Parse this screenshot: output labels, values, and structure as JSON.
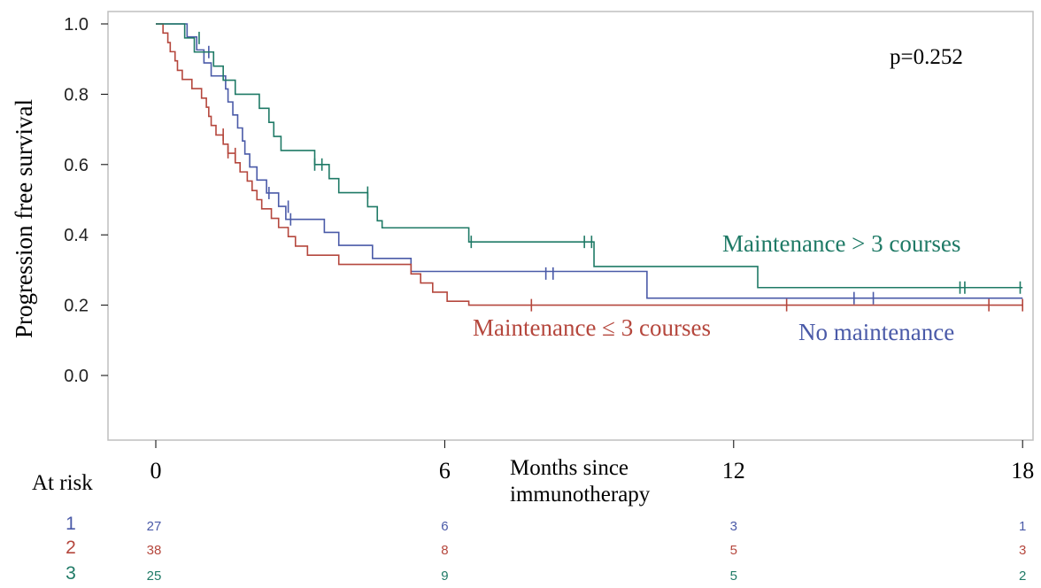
{
  "chart_data": {
    "type": "line",
    "title": "",
    "xlabel": "Months since immunotherapy",
    "xlabel_lines": [
      "Months since",
      "immunotherapy"
    ],
    "ylabel": "Progression free survival",
    "xlim": [
      -1,
      18
    ],
    "ylim": [
      -0.18,
      1.04
    ],
    "x_ticks": [
      0,
      6,
      12,
      18
    ],
    "x_tick_labels": [
      "0",
      "6",
      "12",
      "18"
    ],
    "y_ticks": [
      0.0,
      0.2,
      0.4,
      0.6,
      0.8,
      1.0
    ],
    "y_tick_labels": [
      "0.0",
      "0.2",
      "0.4",
      "0.6",
      "0.8",
      "1.0"
    ],
    "grid": false,
    "annotation": "p=0.252",
    "series": [
      {
        "name": "No maintenance",
        "risk_label": "1",
        "color": "#4a5aa8",
        "steps": [
          [
            0,
            1.0
          ],
          [
            0.65,
            0.963
          ],
          [
            0.85,
            0.926
          ],
          [
            1.0,
            0.889
          ],
          [
            1.15,
            0.852
          ],
          [
            1.45,
            0.815
          ],
          [
            1.5,
            0.778
          ],
          [
            1.6,
            0.741
          ],
          [
            1.7,
            0.704
          ],
          [
            1.8,
            0.667
          ],
          [
            1.85,
            0.63
          ],
          [
            1.95,
            0.593
          ],
          [
            2.1,
            0.556
          ],
          [
            2.3,
            0.519
          ],
          [
            2.55,
            0.481
          ],
          [
            2.7,
            0.444
          ],
          [
            3.5,
            0.407
          ],
          [
            3.8,
            0.37
          ],
          [
            4.5,
            0.333
          ],
          [
            5.3,
            0.296
          ],
          [
            10.2,
            0.22
          ],
          [
            18,
            0.22
          ]
        ],
        "censored": [
          [
            1.1,
            0.92
          ],
          [
            2.35,
            0.519
          ],
          [
            2.75,
            0.48
          ],
          [
            2.8,
            0.444
          ],
          [
            8.1,
            0.29
          ],
          [
            8.25,
            0.29
          ],
          [
            14.5,
            0.22
          ],
          [
            14.9,
            0.22
          ]
        ],
        "at_risk": [
          27,
          6,
          3,
          1
        ]
      },
      {
        "name": "Maintenance ≤ 3 courses",
        "risk_label": "2",
        "color": "#b5473d",
        "steps": [
          [
            0,
            1.0
          ],
          [
            0.15,
            0.974
          ],
          [
            0.25,
            0.947
          ],
          [
            0.3,
            0.921
          ],
          [
            0.4,
            0.895
          ],
          [
            0.45,
            0.868
          ],
          [
            0.55,
            0.842
          ],
          [
            0.75,
            0.816
          ],
          [
            0.95,
            0.789
          ],
          [
            1.05,
            0.763
          ],
          [
            1.1,
            0.737
          ],
          [
            1.15,
            0.711
          ],
          [
            1.25,
            0.684
          ],
          [
            1.4,
            0.658
          ],
          [
            1.5,
            0.632
          ],
          [
            1.65,
            0.605
          ],
          [
            1.75,
            0.579
          ],
          [
            1.9,
            0.553
          ],
          [
            2.0,
            0.526
          ],
          [
            2.1,
            0.5
          ],
          [
            2.2,
            0.474
          ],
          [
            2.4,
            0.447
          ],
          [
            2.55,
            0.421
          ],
          [
            2.75,
            0.395
          ],
          [
            2.9,
            0.368
          ],
          [
            3.15,
            0.342
          ],
          [
            3.8,
            0.316
          ],
          [
            5.3,
            0.289
          ],
          [
            5.5,
            0.263
          ],
          [
            5.75,
            0.237
          ],
          [
            6.05,
            0.211
          ],
          [
            6.5,
            0.2
          ],
          [
            18,
            0.2
          ]
        ],
        "censored": [
          [
            1.4,
            0.685
          ],
          [
            1.5,
            0.635
          ],
          [
            1.65,
            0.63
          ],
          [
            7.8,
            0.2
          ],
          [
            13.1,
            0.2
          ],
          [
            17.3,
            0.2
          ],
          [
            18,
            0.2
          ]
        ],
        "at_risk": [
          38,
          8,
          5,
          3
        ]
      },
      {
        "name": "Maintenance > 3 courses",
        "risk_label": "3",
        "color": "#1f7a66",
        "steps": [
          [
            0,
            1.0
          ],
          [
            0.6,
            1.0
          ],
          [
            0.6,
            0.96
          ],
          [
            0.8,
            0.92
          ],
          [
            1.2,
            0.88
          ],
          [
            1.4,
            0.84
          ],
          [
            1.65,
            0.8
          ],
          [
            2.15,
            0.76
          ],
          [
            2.35,
            0.72
          ],
          [
            2.45,
            0.68
          ],
          [
            2.6,
            0.64
          ],
          [
            3.3,
            0.6
          ],
          [
            3.6,
            0.56
          ],
          [
            3.8,
            0.52
          ],
          [
            4.4,
            0.48
          ],
          [
            4.6,
            0.44
          ],
          [
            4.7,
            0.42
          ],
          [
            6.5,
            0.38
          ],
          [
            9.1,
            0.31
          ],
          [
            12.5,
            0.25
          ],
          [
            18,
            0.25
          ]
        ],
        "censored": [
          [
            0.9,
            0.96
          ],
          [
            3.3,
            0.6
          ],
          [
            3.45,
            0.6
          ],
          [
            4.4,
            0.52
          ],
          [
            6.55,
            0.38
          ],
          [
            8.9,
            0.38
          ],
          [
            9.05,
            0.38
          ],
          [
            16.7,
            0.25
          ],
          [
            16.8,
            0.25
          ],
          [
            17.95,
            0.25
          ]
        ],
        "at_risk": [
          25,
          9,
          5,
          2
        ]
      }
    ],
    "series_labels": [
      "Maintenance > 3 courses",
      "Maintenance ≤ 3 courses",
      "No maintenance"
    ],
    "at_risk_title": "At risk"
  }
}
